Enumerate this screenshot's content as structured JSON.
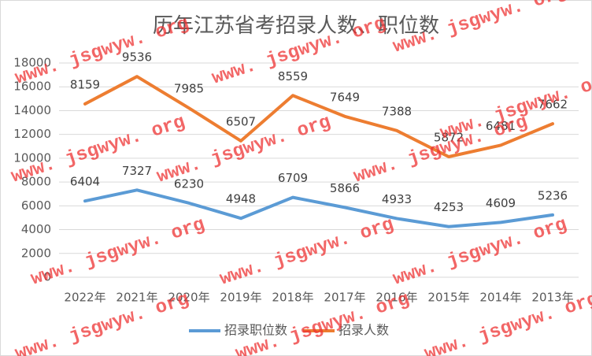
{
  "chart_data": {
    "type": "line",
    "stacked": true,
    "title": "历年江苏省考招录人数、职位数",
    "categories": [
      "2022年",
      "2021年",
      "2020年",
      "2019年",
      "2018年",
      "2017年",
      "2016年",
      "2015年",
      "2014年",
      "2013年"
    ],
    "series": [
      {
        "name": "招录职位数",
        "color": "#5b9bd5",
        "values": [
          6404,
          7327,
          6230,
          4948,
          6709,
          5866,
          4933,
          4253,
          4609,
          5236
        ]
      },
      {
        "name": "招录人数",
        "color": "#ed7d31",
        "values": [
          8159,
          9536,
          7985,
          6507,
          8559,
          7649,
          7388,
          5872,
          6481,
          7662
        ]
      }
    ],
    "ylim": [
      0,
      18000
    ],
    "yticks": [
      0,
      2000,
      4000,
      6000,
      8000,
      10000,
      12000,
      14000,
      16000,
      18000
    ],
    "grid": true,
    "legend": "bottom",
    "watermark": "www. jsgwyw. org"
  }
}
